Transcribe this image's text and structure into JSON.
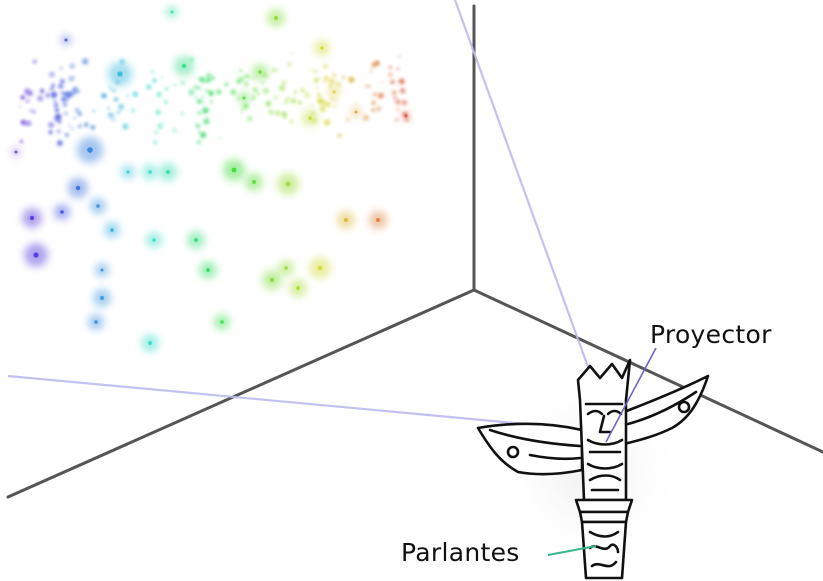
{
  "labels": {
    "projector": "Proyector",
    "speakers": "Parlantes"
  },
  "colors": {
    "room_edges": "#555555",
    "projection_rays": "#b9b6ee",
    "projector_leader": "#6b66c8",
    "speakers_leader": "#37b88a",
    "totem_ink": "#111111",
    "hue_start": "#5a3fc9",
    "hue_mid": "#3cc06a",
    "hue_end": "#e8503a"
  },
  "icons": [
    "totem-pole-illustration"
  ]
}
